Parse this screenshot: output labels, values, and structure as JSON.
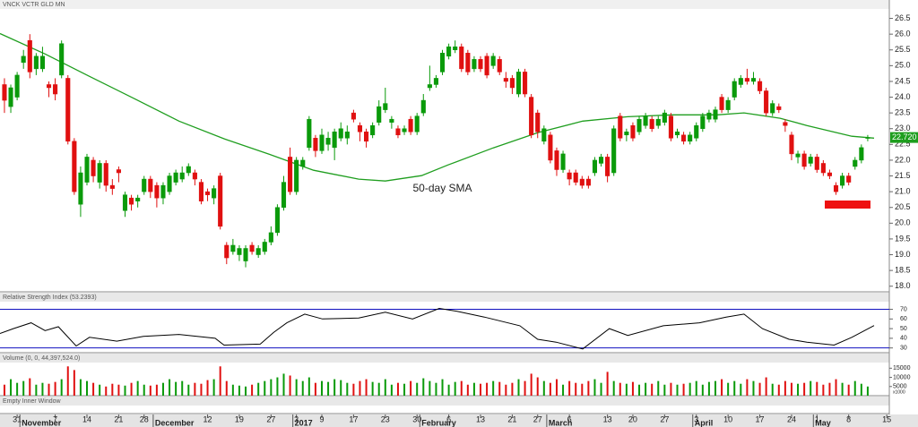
{
  "chart_data": {
    "type": "candlestick",
    "title": "VNCK VCTR GLD MN",
    "xlim": [
      -0.7,
      139.4
    ],
    "xticks": [
      {
        "value": 2,
        "label": "31"
      },
      {
        "value": 8,
        "label": "7"
      },
      {
        "value": 13,
        "label": "14"
      },
      {
        "value": 18,
        "label": "21"
      },
      {
        "value": 22,
        "label": "28"
      },
      {
        "value": 32,
        "label": "12"
      },
      {
        "value": 37,
        "label": "19"
      },
      {
        "value": 42,
        "label": "27"
      },
      {
        "value": 46,
        "label": "3"
      },
      {
        "value": 50,
        "label": "9"
      },
      {
        "value": 55,
        "label": "17"
      },
      {
        "value": 60,
        "label": "23"
      },
      {
        "value": 65,
        "label": "30"
      },
      {
        "value": 70,
        "label": "6"
      },
      {
        "value": 75,
        "label": "13"
      },
      {
        "value": 80,
        "label": "21"
      },
      {
        "value": 84,
        "label": "27"
      },
      {
        "value": 89,
        "label": "6"
      },
      {
        "value": 95,
        "label": "13"
      },
      {
        "value": 99,
        "label": "20"
      },
      {
        "value": 104,
        "label": "27"
      },
      {
        "value": 109,
        "label": "3"
      },
      {
        "value": 114,
        "label": "10"
      },
      {
        "value": 119,
        "label": "17"
      },
      {
        "value": 124,
        "label": "24"
      },
      {
        "value": 128,
        "label": "1"
      },
      {
        "value": 133,
        "label": "8"
      },
      {
        "value": 139,
        "label": "15"
      }
    ],
    "months": [
      {
        "value": 3,
        "label": "November"
      },
      {
        "value": 24,
        "label": "December"
      },
      {
        "value": 46,
        "label": "2017"
      },
      {
        "value": 66,
        "label": "February"
      },
      {
        "value": 86,
        "label": "March"
      },
      {
        "value": 109,
        "label": "April"
      },
      {
        "value": 128,
        "label": "May"
      }
    ],
    "ylim": [
      17.85,
      26.8
    ],
    "yticks": [
      {
        "value": 18,
        "label": "18.0"
      },
      18.5,
      {
        "value": 19,
        "label": "19.0"
      },
      19.5,
      {
        "value": 20,
        "label": "20.0"
      },
      20.5,
      {
        "value": 21,
        "label": "21.0"
      },
      21.5,
      {
        "value": 22,
        "label": "22.0"
      },
      22.5,
      {
        "value": 23,
        "label": "23.0"
      },
      23.5,
      {
        "value": 24,
        "label": "24.0"
      },
      24.5,
      {
        "value": 25,
        "label": "25.0"
      },
      25.5,
      {
        "value": 26,
        "label": "26.0"
      },
      26.5
    ],
    "up_color": "#0a9a0a",
    "down_color": "#e01010",
    "candles": {
      "open": [
        24.4,
        23.7,
        24.0,
        25.1,
        25.8,
        24.9,
        24.9,
        24.4,
        24.4,
        24.7,
        24.6,
        22.6,
        20.6,
        21.3,
        22.0,
        21.3,
        21.9,
        21.2,
        21.7,
        20.4,
        20.8,
        20.7,
        21.0,
        21.4,
        21.2,
        20.8,
        21.0,
        21.3,
        21.4,
        21.6,
        21.6,
        21.3,
        21.0,
        20.8,
        21.5,
        19.3,
        19.1,
        19.0,
        18.8,
        19.3,
        19.0,
        19.1,
        19.4,
        19.7,
        20.5,
        22.1,
        21.0,
        21.8,
        22.4,
        22.7,
        22.3,
        22.5,
        22.4,
        22.7,
        22.7,
        23.5,
        23.1,
        22.9,
        22.8,
        23.2,
        23.6,
        23.2,
        23.0,
        22.9,
        23.3,
        22.9,
        23.5,
        24.3,
        24.4,
        24.8,
        25.3,
        25.5,
        25.6,
        25.4,
        24.9,
        25.2,
        25.3,
        25.0,
        25.2,
        24.6,
        24.6,
        24.1,
        24.8,
        24.0,
        23.5,
        22.6,
        22.8,
        22.3,
        21.7,
        21.6,
        21.6,
        21.4,
        21.4,
        21.6,
        21.9,
        22.1,
        21.6,
        23.4,
        22.8,
        23.1,
        22.9,
        23.1,
        23.3,
        23.1,
        23.2,
        23.4,
        22.8,
        22.8,
        22.6,
        22.7,
        23.0,
        23.3,
        23.3,
        24.0,
        23.6,
        24.0,
        24.4,
        24.6,
        24.5,
        24.5,
        24.2,
        23.5,
        23.7,
        23.2,
        22.8,
        22.1,
        22.2,
        21.9,
        22.1,
        21.9,
        21.6,
        21.2,
        21.2,
        21.5,
        21.8,
        22.0,
        22.7
      ],
      "high": [
        24.6,
        24.4,
        24.8,
        25.5,
        26.0,
        25.4,
        25.6,
        24.5,
        24.6,
        25.8,
        24.7,
        22.7,
        21.8,
        22.2,
        22.1,
        22.0,
        22.0,
        21.4,
        21.8,
        21.0,
        20.9,
        20.9,
        21.5,
        21.5,
        21.3,
        21.3,
        21.6,
        21.7,
        21.8,
        21.9,
        21.7,
        21.4,
        21.1,
        21.2,
        21.6,
        19.4,
        19.5,
        19.3,
        19.3,
        19.4,
        19.3,
        19.5,
        19.9,
        20.6,
        21.5,
        22.4,
        22.1,
        22.1,
        23.4,
        22.8,
        23.0,
        22.9,
        23.0,
        23.2,
        23.1,
        23.6,
        23.2,
        23.0,
        23.2,
        23.9,
        24.3,
        23.4,
        23.1,
        23.1,
        23.4,
        23.5,
        24.1,
        25.0,
        24.7,
        25.5,
        25.7,
        25.8,
        25.7,
        25.5,
        25.3,
        25.3,
        25.4,
        25.4,
        25.3,
        24.8,
        24.7,
        24.9,
        24.9,
        24.1,
        23.6,
        23.1,
        22.9,
        22.4,
        22.3,
        21.7,
        21.7,
        21.5,
        21.5,
        22.1,
        22.2,
        22.2,
        23.1,
        23.5,
        23.0,
        23.2,
        23.4,
        23.5,
        23.4,
        23.4,
        23.6,
        23.5,
        23.0,
        22.9,
        22.9,
        23.2,
        23.5,
        23.6,
        23.7,
        24.1,
        24.0,
        24.6,
        24.7,
        24.9,
        24.8,
        24.6,
        24.3,
        23.9,
        23.8,
        23.3,
        22.9,
        22.3,
        22.3,
        22.2,
        22.2,
        22.0,
        21.7,
        21.3,
        21.6,
        21.6,
        22.1,
        22.5,
        22.8
      ],
      "low": [
        23.5,
        23.5,
        23.9,
        24.9,
        24.6,
        24.7,
        24.8,
        24.0,
        23.9,
        24.6,
        22.5,
        20.9,
        20.2,
        21.2,
        21.3,
        21.1,
        21.0,
        20.9,
        21.3,
        20.2,
        20.4,
        20.5,
        20.9,
        20.8,
        20.5,
        20.6,
        20.9,
        21.2,
        21.3,
        21.5,
        21.2,
        20.6,
        20.7,
        20.6,
        19.8,
        18.7,
        19.0,
        18.8,
        18.6,
        19.0,
        18.9,
        19.0,
        19.3,
        19.6,
        20.4,
        20.9,
        20.9,
        21.7,
        22.3,
        22.1,
        22.2,
        22.3,
        22.0,
        22.6,
        22.5,
        23.2,
        22.6,
        22.4,
        22.7,
        23.1,
        23.5,
        23.0,
        22.7,
        22.8,
        22.8,
        22.8,
        23.4,
        24.2,
        24.3,
        24.7,
        25.2,
        25.4,
        24.8,
        24.7,
        24.8,
        24.8,
        24.6,
        24.9,
        24.7,
        24.3,
        24.1,
        24.0,
        24.0,
        22.7,
        22.7,
        22.5,
        21.9,
        21.5,
        21.6,
        21.2,
        21.2,
        21.1,
        21.1,
        21.5,
        21.8,
        21.3,
        21.5,
        22.6,
        22.6,
        22.6,
        22.8,
        23.0,
        22.9,
        23.0,
        23.1,
        22.6,
        22.7,
        22.5,
        22.5,
        22.6,
        22.9,
        23.2,
        23.2,
        23.5,
        23.5,
        23.9,
        24.3,
        24.4,
        24.4,
        24.1,
        23.4,
        23.4,
        23.5,
        22.9,
        22.0,
        21.9,
        21.7,
        21.8,
        21.6,
        21.5,
        21.4,
        20.9,
        21.1,
        21.2,
        21.7,
        21.9,
        22.6
      ],
      "close": [
        23.9,
        24.3,
        24.7,
        25.3,
        24.8,
        25.3,
        25.3,
        24.3,
        24.1,
        25.7,
        22.6,
        21.0,
        21.6,
        22.1,
        21.5,
        21.9,
        21.2,
        21.1,
        21.6,
        20.9,
        20.6,
        20.8,
        21.4,
        21.0,
        20.8,
        21.2,
        21.5,
        21.6,
        21.6,
        21.8,
        21.4,
        20.7,
        20.9,
        21.1,
        19.9,
        18.9,
        19.3,
        19.2,
        19.2,
        19.1,
        19.2,
        19.4,
        19.7,
        20.5,
        21.3,
        21.0,
        22.0,
        22.0,
        23.3,
        22.3,
        22.8,
        22.7,
        22.9,
        23.0,
        22.9,
        23.3,
        22.9,
        22.6,
        23.1,
        23.7,
        23.8,
        23.3,
        22.8,
        23.0,
        22.9,
        23.4,
        23.9,
        24.4,
        24.6,
        25.4,
        25.6,
        25.6,
        24.9,
        24.8,
        25.2,
        24.9,
        24.7,
        25.3,
        24.8,
        24.5,
        24.3,
        24.8,
        24.1,
        22.8,
        22.9,
        23.0,
        22.0,
        21.7,
        22.2,
        21.4,
        21.3,
        21.2,
        21.2,
        22.0,
        22.1,
        21.5,
        23.0,
        22.7,
        22.9,
        22.7,
        23.3,
        23.4,
        23.0,
        23.3,
        23.5,
        22.7,
        22.9,
        22.6,
        22.8,
        23.1,
        23.4,
        23.5,
        23.6,
        23.6,
        23.9,
        24.5,
        24.6,
        24.5,
        24.6,
        24.2,
        23.5,
        23.8,
        23.6,
        23.1,
        22.2,
        22.2,
        21.8,
        22.1,
        21.7,
        21.6,
        21.5,
        21.0,
        21.5,
        21.3,
        22.0,
        22.4,
        22.72
      ]
    },
    "last_price_label": "22.720",
    "sma": {
      "name": "50-day SMA",
      "color": "#1f9e1f",
      "x": [
        -0.7,
        6.4,
        13.4,
        20.5,
        27.5,
        34.6,
        41.7,
        48.7,
        55.8,
        60,
        65.7,
        69.9,
        77,
        84,
        91.1,
        98.2,
        105.2,
        112.3,
        116.5,
        122.2,
        126.4,
        133.5,
        137
      ],
      "values": [
        26.02,
        25.37,
        24.66,
        23.95,
        23.24,
        22.68,
        22.19,
        21.68,
        21.4,
        21.34,
        21.51,
        21.85,
        22.39,
        22.87,
        23.24,
        23.38,
        23.44,
        23.44,
        23.5,
        23.33,
        23.1,
        22.76,
        22.7
      ]
    },
    "rsi": {
      "title": "Relative Strength Index (53.2393)",
      "color": "#000000",
      "level_color": "#1010c0",
      "ylim": [
        26,
        77
      ],
      "yticks": [
        30,
        40,
        50,
        60,
        70
      ],
      "levels": [
        70,
        30
      ],
      "x": [
        -0.7,
        1.4,
        4.2,
        6.4,
        8.5,
        11.3,
        13.4,
        17.7,
        21.9,
        27.5,
        33.2,
        34.6,
        40.3,
        42.4,
        44.5,
        47.3,
        50.1,
        55.8,
        60,
        64.3,
        68.5,
        71.3,
        75.6,
        81.2,
        84,
        86.9,
        91.1,
        95.3,
        98.2,
        103.8,
        109.5,
        113.7,
        116.5,
        119.4,
        123.6,
        126.4,
        130.7,
        133.5,
        137
      ],
      "values": [
        45,
        50,
        56,
        48,
        52,
        32,
        41,
        37,
        42,
        44,
        40,
        33,
        34,
        46,
        56,
        65,
        60,
        61,
        67,
        60,
        71,
        68,
        62,
        53,
        39,
        36,
        29,
        50,
        43,
        53,
        56,
        62,
        65,
        50,
        39,
        36,
        33,
        41,
        53.2
      ]
    },
    "volume": {
      "title": "Volume (0, 0, 44,397,524.0)",
      "unit_label": "x1000",
      "ylim": [
        0,
        17600
      ],
      "yticks": [
        5000,
        10000,
        15000
      ],
      "values": [
        6000,
        9000,
        7000,
        8000,
        9500,
        6000,
        7000,
        6500,
        7500,
        9000,
        16000,
        14000,
        9000,
        8000,
        7000,
        6000,
        5000,
        6500,
        6000,
        5500,
        7000,
        8000,
        6000,
        5500,
        6000,
        7000,
        9000,
        7500,
        8000,
        6000,
        7000,
        6500,
        8500,
        9000,
        16000,
        8000,
        6000,
        5500,
        5000,
        6000,
        7000,
        8000,
        9000,
        10000,
        12000,
        11000,
        9000,
        8000,
        10000,
        7000,
        8000,
        7500,
        9000,
        8500,
        7000,
        6500,
        8000,
        9000,
        7500,
        7000,
        9000,
        6000,
        7000,
        6500,
        8000,
        7000,
        9500,
        8000,
        7000,
        9000,
        6000,
        7500,
        8000,
        6000,
        7000,
        6500,
        7000,
        8000,
        7500,
        6000,
        7000,
        9000,
        8000,
        12000,
        10000,
        8000,
        7000,
        9000,
        6000,
        8000,
        7000,
        6500,
        8000,
        9000,
        7000,
        13000,
        8000,
        7000,
        6500,
        7500,
        6000,
        7000,
        6500,
        8000,
        6000,
        7000,
        6000,
        6500,
        7000,
        8000,
        6000,
        7500,
        8000,
        9000,
        7000,
        8000,
        6500,
        9000,
        8000,
        7000,
        10000,
        6500,
        6000,
        8000,
        7000,
        6500,
        7000,
        8000,
        7500,
        6000,
        7000,
        9000,
        7000,
        6000,
        8000,
        6500,
        5000
      ]
    },
    "empty_panel_title": "Empty Inner Window"
  }
}
